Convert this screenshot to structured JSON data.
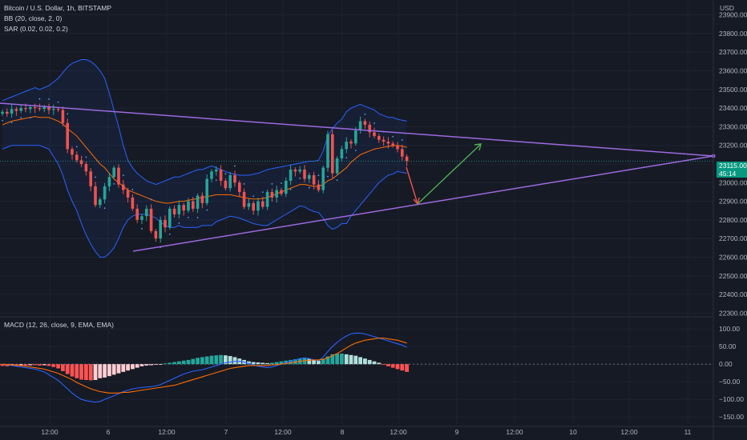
{
  "header": {
    "symbol_title": "Bitcoin / U.S. Dollar, 1h, BITSTAMP",
    "bb_label": "BB (20, close, 2, 0)",
    "sar_label": "SAR (0.02, 0.02, 0.2)",
    "currency": "USD"
  },
  "price_tag": {
    "price": "23115.00",
    "countdown": "45:14"
  },
  "macd_panel": {
    "label": "MACD (12, 26, close, 9, EMA, EMA)"
  },
  "colors": {
    "background": "#161a25",
    "up_candle": "#26a69a",
    "down_candle": "#ef5350",
    "bb_band": "#2962ff",
    "bb_basis": "#ff6d00",
    "trendline": "#9c6ade",
    "arrow_down": "#ef5350",
    "arrow_up": "#4caf50",
    "macd_line": "#2962ff",
    "signal_line": "#ff6d00"
  },
  "chart_data": [
    {
      "type": "candlestick",
      "title": "Bitcoin / U.S. Dollar, 1h, BITSTAMP",
      "x_tick_labels": [
        "12:00",
        "6",
        "12:00",
        "7",
        "12:00",
        "8",
        "12:00",
        "9",
        "12:00",
        "10",
        "12:00",
        "11"
      ],
      "y_tick_labels": [
        "23900.00",
        "23800.00",
        "23700.00",
        "23600.00",
        "23500.00",
        "23400.00",
        "23300.00",
        "23200.00",
        "23100.00",
        "23000.00",
        "22900.00",
        "22800.00",
        "22700.00",
        "22600.00",
        "22500.00",
        "22400.00",
        "22300.00"
      ],
      "ylim": [
        22280,
        23980
      ],
      "grid": true,
      "close": [
        23380,
        23370,
        23395,
        23385,
        23400,
        23395,
        23405,
        23400,
        23395,
        23405,
        23390,
        23395,
        23390,
        23320,
        23180,
        23150,
        23120,
        23100,
        23060,
        22980,
        22880,
        22910,
        22980,
        23030,
        23080,
        22990,
        22960,
        22920,
        22860,
        22800,
        22820,
        22860,
        22740,
        22700,
        22800,
        22760,
        22860,
        22830,
        22880,
        22850,
        22900,
        22860,
        22930,
        22890,
        23020,
        23060,
        23070,
        23010,
        22970,
        23040,
        23000,
        22950,
        22870,
        22890,
        22850,
        22900,
        22870,
        22950,
        22920,
        22960,
        22940,
        23010,
        23070,
        23060,
        23070,
        23020,
        23040,
        22990,
        22960,
        23080,
        23260,
        23050,
        23130,
        23180,
        23220,
        23210,
        23280,
        23330,
        23310,
        23270,
        23250,
        23230,
        23220,
        23210,
        23200,
        23180,
        23140,
        23115
      ],
      "bb_upper": [
        23440,
        23450,
        23460,
        23470,
        23480,
        23490,
        23500,
        23510,
        23500,
        23510,
        23520,
        23540,
        23560,
        23590,
        23620,
        23640,
        23650,
        23660,
        23660,
        23650,
        23630,
        23600,
        23560,
        23480,
        23390,
        23300,
        23200,
        23120,
        23080,
        23050,
        23030,
        23010,
        23000,
        22990,
        23000,
        23010,
        23020,
        23030,
        23030,
        23040,
        23050,
        23060,
        23070,
        23070,
        23080,
        23090,
        23080,
        23070,
        23060,
        23050,
        23045,
        23040,
        23040,
        23040,
        23045,
        23050,
        23060,
        23070,
        23075,
        23080,
        23085,
        23090,
        23095,
        23100,
        23105,
        23110,
        23115,
        23115,
        23120,
        23170,
        23250,
        23290,
        23320,
        23340,
        23380,
        23400,
        23410,
        23420,
        23410,
        23400,
        23390,
        23370,
        23360,
        23350,
        23350,
        23340,
        23335,
        23330
      ],
      "bb_basis": [
        23310,
        23320,
        23330,
        23335,
        23340,
        23345,
        23350,
        23355,
        23350,
        23350,
        23350,
        23340,
        23330,
        23315,
        23290,
        23270,
        23250,
        23220,
        23190,
        23160,
        23130,
        23100,
        23080,
        23050,
        23020,
        23000,
        22980,
        22960,
        22950,
        22940,
        22930,
        22920,
        22910,
        22900,
        22895,
        22890,
        22890,
        22895,
        22900,
        22900,
        22905,
        22910,
        22915,
        22920,
        22925,
        22930,
        22935,
        22935,
        22935,
        22935,
        22930,
        22925,
        22920,
        22915,
        22912,
        22912,
        22915,
        22920,
        22930,
        22940,
        22950,
        22960,
        22970,
        22980,
        22990,
        22990,
        22985,
        22980,
        22980,
        22990,
        23010,
        23020,
        23040,
        23060,
        23080,
        23110,
        23130,
        23150,
        23160,
        23170,
        23180,
        23185,
        23190,
        23195,
        23198,
        23200,
        23195,
        23190
      ],
      "bb_lower": [
        23180,
        23190,
        23200,
        23200,
        23200,
        23200,
        23200,
        23200,
        23200,
        23190,
        23180,
        23140,
        23100,
        23040,
        22960,
        22900,
        22850,
        22780,
        22720,
        22670,
        22630,
        22600,
        22600,
        22620,
        22650,
        22700,
        22760,
        22800,
        22820,
        22830,
        22830,
        22830,
        22820,
        22810,
        22790,
        22770,
        22760,
        22760,
        22770,
        22760,
        22760,
        22760,
        22760,
        22770,
        22770,
        22770,
        22790,
        22800,
        22810,
        22820,
        22815,
        22810,
        22800,
        22790,
        22780,
        22775,
        22770,
        22770,
        22785,
        22800,
        22815,
        22830,
        22845,
        22860,
        22875,
        22870,
        22855,
        22845,
        22840,
        22810,
        22770,
        22750,
        22760,
        22780,
        22780,
        22820,
        22850,
        22880,
        22910,
        22940,
        22970,
        23000,
        23020,
        23040,
        23046,
        23060,
        23055,
        23050
      ]
    },
    {
      "type": "bar",
      "title": "MACD (12, 26, close, 9, EMA, EMA)",
      "y_tick_labels": [
        "100.00",
        "50.00",
        "0.00",
        "−50.00",
        "−100.00",
        "−150.00"
      ],
      "ylim": [
        -170,
        130
      ],
      "histogram": [
        -5,
        -6,
        -4,
        -5,
        -3,
        -4,
        -3,
        -3,
        -4,
        -3,
        -5,
        -8,
        -12,
        -20,
        -28,
        -35,
        -40,
        -44,
        -45,
        -46,
        -45,
        -40,
        -38,
        -34,
        -30,
        -26,
        -22,
        -18,
        -14,
        -10,
        -6,
        -4,
        -3,
        -2,
        -1,
        2,
        4,
        6,
        8,
        10,
        12,
        15,
        18,
        20,
        22,
        24,
        25,
        26,
        25,
        23,
        20,
        16,
        12,
        8,
        6,
        5,
        4,
        3,
        4,
        6,
        8,
        10,
        12,
        14,
        16,
        18,
        15,
        12,
        10,
        15,
        22,
        28,
        30,
        30,
        28,
        26,
        24,
        20,
        16,
        12,
        8,
        4,
        -2,
        -6,
        -10,
        -14,
        -18,
        -22
      ],
      "macd": [
        0,
        -2,
        -4,
        -6,
        -8,
        -10,
        -12,
        -14,
        -18,
        -22,
        -30,
        -38,
        -46,
        -58,
        -70,
        -82,
        -92,
        -100,
        -104,
        -106,
        -108,
        -106,
        -100,
        -95,
        -90,
        -84,
        -78,
        -74,
        -70,
        -68,
        -66,
        -65,
        -64,
        -62,
        -58,
        -52,
        -46,
        -40,
        -34,
        -28,
        -24,
        -20,
        -18,
        -16,
        -12,
        -8,
        -4,
        0,
        4,
        6,
        8,
        8,
        6,
        2,
        -2,
        -6,
        -8,
        -10,
        -8,
        -4,
        0,
        4,
        8,
        12,
        16,
        18,
        16,
        12,
        10,
        20,
        36,
        50,
        62,
        72,
        80,
        86,
        88,
        88,
        86,
        82,
        78,
        74,
        70,
        66,
        62,
        58,
        54,
        48
      ],
      "signal": [
        0,
        -1,
        -2,
        -3,
        -4,
        -6,
        -8,
        -10,
        -12,
        -14,
        -18,
        -22,
        -26,
        -32,
        -38,
        -44,
        -52,
        -58,
        -64,
        -70,
        -74,
        -78,
        -80,
        -82,
        -82,
        -82,
        -80,
        -80,
        -78,
        -76,
        -74,
        -72,
        -70,
        -68,
        -66,
        -64,
        -62,
        -60,
        -56,
        -52,
        -48,
        -44,
        -40,
        -36,
        -32,
        -28,
        -24,
        -20,
        -16,
        -12,
        -10,
        -8,
        -6,
        -4,
        -4,
        -4,
        -4,
        -4,
        -2,
        -1,
        0,
        2,
        4,
        6,
        8,
        10,
        11,
        12,
        12,
        14,
        18,
        24,
        30,
        38,
        46,
        54,
        60,
        64,
        68,
        70,
        72,
        74,
        74,
        72,
        70,
        68,
        64,
        60
      ]
    }
  ]
}
